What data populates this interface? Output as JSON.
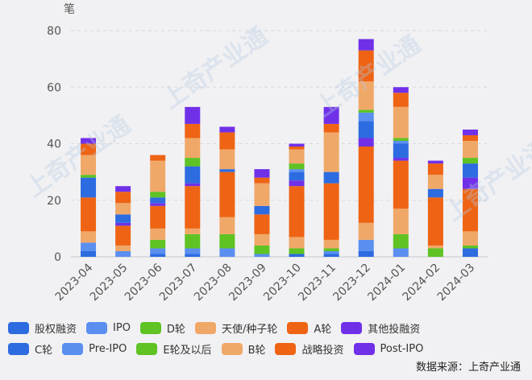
{
  "chart_data": {
    "type": "bar",
    "stacked": true,
    "ylabel": "笔",
    "ylim": [
      0,
      80
    ],
    "yticks": [
      0,
      20,
      40,
      60,
      80
    ],
    "grid": true,
    "legend_position": "bottom",
    "categories": [
      "2023-04",
      "2023-05",
      "2023-06",
      "2023-07",
      "2023-08",
      "2023-09",
      "2023-10",
      "2023-11",
      "2023-12",
      "2024-01",
      "2024-02",
      "2024-03"
    ],
    "series": [
      {
        "name": "股权融资",
        "color": "#2d6be0",
        "values": [
          2,
          0,
          1,
          1,
          0,
          0,
          1,
          1,
          2,
          0,
          0,
          3
        ]
      },
      {
        "name": "IPO",
        "color": "#5a8ff0",
        "values": [
          3,
          2,
          2,
          2,
          3,
          1,
          0,
          1,
          4,
          3,
          0,
          0
        ]
      },
      {
        "name": "D轮",
        "color": "#5ec323",
        "values": [
          0,
          0,
          3,
          5,
          5,
          3,
          2,
          1,
          0,
          5,
          3,
          1
        ]
      },
      {
        "name": "天使/种子轮",
        "color": "#f0a868",
        "values": [
          4,
          2,
          4,
          2,
          6,
          4,
          4,
          3,
          6,
          9,
          1,
          5
        ]
      },
      {
        "name": "A轮",
        "color": "#ee6414",
        "values": [
          12,
          7,
          8,
          15,
          16,
          7,
          18,
          20,
          27,
          17,
          17,
          15
        ]
      },
      {
        "name": "其他投融资",
        "color": "#7030e8",
        "values": [
          0,
          1,
          1,
          1,
          0,
          0,
          2,
          0,
          3,
          1,
          0,
          4
        ]
      },
      {
        "name": "C轮",
        "color": "#2d6be0",
        "values": [
          7,
          3,
          2,
          6,
          1,
          3,
          3,
          4,
          6,
          5,
          3,
          5
        ]
      },
      {
        "name": "Pre-IPO",
        "color": "#5a8ff0",
        "values": [
          0,
          0,
          0,
          0,
          0,
          0,
          1,
          0,
          3,
          1,
          0,
          0
        ]
      },
      {
        "name": "E轮及以后",
        "color": "#5ec323",
        "values": [
          1,
          0,
          2,
          3,
          0,
          0,
          2,
          0,
          1,
          1,
          0,
          2
        ]
      },
      {
        "name": "B轮",
        "color": "#f0a868",
        "values": [
          7,
          4,
          11,
          7,
          7,
          8,
          5,
          14,
          10,
          11,
          5,
          6
        ]
      },
      {
        "name": "战略投资",
        "color": "#ee6414",
        "values": [
          4,
          4,
          2,
          5,
          6,
          2,
          1,
          3,
          11,
          5,
          4,
          2
        ]
      },
      {
        "name": "Post-IPO",
        "color": "#7030e8",
        "values": [
          2,
          2,
          0,
          6,
          2,
          3,
          1,
          6,
          4,
          2,
          1,
          2
        ]
      }
    ]
  },
  "source": "数据来源：上奇产业通",
  "watermark": "上奇产业通"
}
